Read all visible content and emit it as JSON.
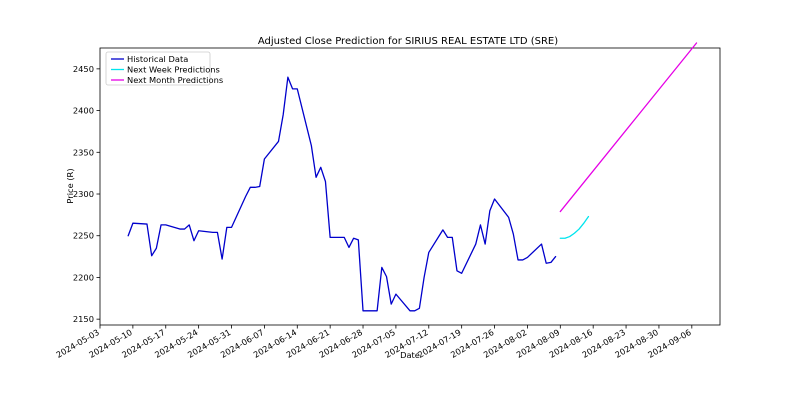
{
  "chart_data": {
    "type": "line",
    "title": "Adjusted Close Prediction for SIRIUS REAL ESTATE LTD (SRE)",
    "xlabel": "Date",
    "ylabel": "Price (R)",
    "x_ticks": [
      "2024-05-03",
      "2024-05-10",
      "2024-05-17",
      "2024-05-24",
      "2024-05-31",
      "2024-06-07",
      "2024-06-14",
      "2024-06-21",
      "2024-06-28",
      "2024-07-05",
      "2024-07-12",
      "2024-07-19",
      "2024-07-26",
      "2024-08-02",
      "2024-08-09",
      "2024-08-16",
      "2024-08-23",
      "2024-08-30",
      "2024-09-06"
    ],
    "y_ticks": [
      2150,
      2200,
      2250,
      2300,
      2350,
      2400,
      2450
    ],
    "xlim": [
      "2024-05-03",
      "2024-09-12"
    ],
    "ylim": [
      2143,
      2475
    ],
    "grid": false,
    "legend_position": "top-left",
    "series": [
      {
        "name": "Historical Data",
        "color": "#0000cc",
        "x": [
          "2024-05-09",
          "2024-05-10",
          "2024-05-13",
          "2024-05-14",
          "2024-05-15",
          "2024-05-16",
          "2024-05-17",
          "2024-05-20",
          "2024-05-21",
          "2024-05-22",
          "2024-05-23",
          "2024-05-24",
          "2024-05-27",
          "2024-05-28",
          "2024-05-29",
          "2024-05-30",
          "2024-05-31",
          "2024-06-03",
          "2024-06-04",
          "2024-06-05",
          "2024-06-06",
          "2024-06-07",
          "2024-06-10",
          "2024-06-11",
          "2024-06-12",
          "2024-06-13",
          "2024-06-14",
          "2024-06-17",
          "2024-06-18",
          "2024-06-19",
          "2024-06-20",
          "2024-06-21",
          "2024-06-24",
          "2024-06-25",
          "2024-06-26",
          "2024-06-27",
          "2024-06-28",
          "2024-07-01",
          "2024-07-02",
          "2024-07-03",
          "2024-07-04",
          "2024-07-05",
          "2024-07-08",
          "2024-07-09",
          "2024-07-10",
          "2024-07-11",
          "2024-07-12",
          "2024-07-15",
          "2024-07-16",
          "2024-07-17",
          "2024-07-18",
          "2024-07-19",
          "2024-07-22",
          "2024-07-23",
          "2024-07-24",
          "2024-07-25",
          "2024-07-26",
          "2024-07-29",
          "2024-07-30",
          "2024-07-31",
          "2024-08-01",
          "2024-08-02",
          "2024-08-05",
          "2024-08-06",
          "2024-08-07",
          "2024-08-08"
        ],
        "values": [
          2250,
          2265,
          2264,
          2226,
          2235,
          2263,
          2263,
          2258,
          2258,
          2263,
          2244,
          2256,
          2254,
          2254,
          2222,
          2260,
          2260,
          2297,
          2308,
          2308,
          2309,
          2342,
          2363,
          2395,
          2440,
          2426,
          2426,
          2358,
          2320,
          2332,
          2315,
          2248,
          2248,
          2236,
          2247,
          2245,
          2160,
          2160,
          2212,
          2201,
          2168,
          2180,
          2160,
          2160,
          2163,
          2200,
          2230,
          2257,
          2248,
          2248,
          2208,
          2205,
          2240,
          2263,
          2240,
          2280,
          2294,
          2272,
          2252,
          2221,
          2221,
          2224,
          2240,
          2217,
          2218,
          2225
        ]
      },
      {
        "name": "Next Week Predictions",
        "color": "#00e5ee",
        "x": [
          "2024-08-09",
          "2024-08-10",
          "2024-08-11",
          "2024-08-12",
          "2024-08-13",
          "2024-08-14",
          "2024-08-15"
        ],
        "values": [
          2247,
          2247,
          2249,
          2253,
          2258,
          2265,
          2273
        ]
      },
      {
        "name": "Next Month Predictions",
        "color": "#e600e6",
        "x": [
          "2024-08-09",
          "2024-09-07"
        ],
        "values": [
          2279,
          2481
        ]
      }
    ]
  }
}
